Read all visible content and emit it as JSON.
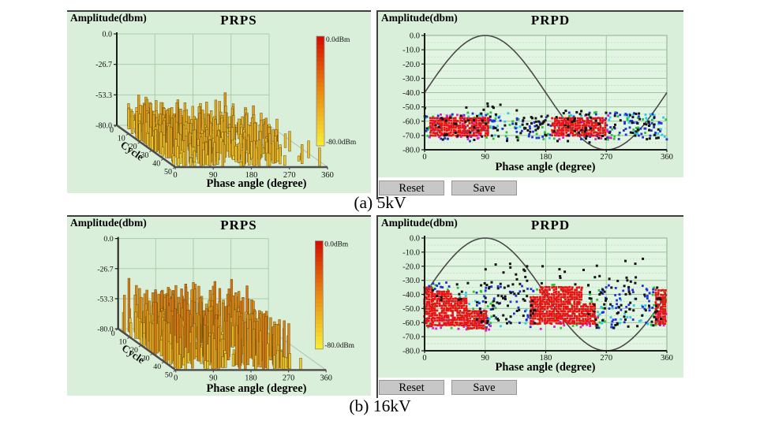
{
  "captions": {
    "a": "(a) 5kV",
    "b": "(b) 16kV"
  },
  "buttons": {
    "reset": "Reset",
    "save": "Save"
  },
  "colors": {
    "panel_bg": "#d9efd9",
    "plot_bg": "#e2f4e2",
    "grid_major": "#9cc49c",
    "grid_minor": "#b4d7b4",
    "backwall_grid": "#a9cdab",
    "axis": "#1c1c1c",
    "frame": "#4c4c4c",
    "sine": "#4a4a4a",
    "button_bg": "#c7c7c7",
    "panel_border": "#3f3f3f"
  },
  "chart_data": [
    {
      "id": "prps_5kv",
      "type": "bar",
      "variant": "bar3d-prps",
      "title": "PRPS",
      "ylabel": "Amplitude(dbm)",
      "xlabel": "Phase angle (degree)",
      "cycle_label": "Cycle",
      "yticks": [
        "0.0",
        "-26.7",
        "-53.3",
        "-80.0"
      ],
      "ylim": [
        0,
        -80
      ],
      "xticks": [
        "0",
        "90",
        "180",
        "270",
        "360"
      ],
      "xlim": [
        0,
        360
      ],
      "cycle_ticks": [
        "0",
        "10",
        "20",
        "30",
        "40",
        "50"
      ],
      "cycle_range": [
        0,
        50
      ],
      "colorbar": {
        "top_label": "0.0dBm",
        "bottom_label": "-80.0dBm",
        "top_color": "#d41000",
        "bottom_color": "#f6ea32"
      },
      "palette": {
        "low": "#f2df3a",
        "mid": "#d98f1d",
        "high": "#c8320a"
      },
      "seed": 101,
      "clusters": [
        {
          "phase": [
            0,
            133
          ],
          "count": 260,
          "amp": [
            -52,
            -78
          ],
          "peak_share": 0.05,
          "peak_amp": [
            -46,
            -50
          ]
        },
        {
          "phase": [
            150,
            272
          ],
          "count": 180,
          "amp": [
            -54,
            -78
          ],
          "peak_share": 0.04,
          "peak_amp": [
            -47,
            -52
          ]
        },
        {
          "phase": [
            272,
            337
          ],
          "count": 26,
          "amp": [
            -60,
            -79
          ]
        },
        {
          "phase": [
            343,
            348
          ],
          "count": 2,
          "amp": [
            -63,
            -67
          ]
        }
      ]
    },
    {
      "id": "prpd_5kv",
      "type": "scatter",
      "variant": "prpd",
      "title": "PRPD",
      "ylabel": "Amplitude(dbm)",
      "xlabel": "Phase angle (degree)",
      "yticks": [
        "0.0",
        "-10.0",
        "-20.0",
        "-30.0",
        "-40.0",
        "-50.0",
        "-60.0",
        "-70.0",
        "-80.0"
      ],
      "ylim": [
        0,
        -80
      ],
      "xticks": [
        "0",
        "90",
        "180",
        "270",
        "360"
      ],
      "xlim": [
        0,
        360
      ],
      "sine_overlay": {
        "center_dbm": -40,
        "amplitude_dbm": 40
      },
      "point_colors": {
        "red": "#e81212",
        "magenta": "#de1ec8",
        "green": "#28c33e",
        "yellow": "#eeeea6",
        "cyan": "#27c9e5",
        "blue": "#2230d8",
        "black": "#141414"
      },
      "seed": 202,
      "regions": [
        {
          "kind": "random",
          "color": "yellow",
          "phase": [
            28,
            100
          ],
          "amp": [
            -55,
            -70
          ],
          "count": 20
        },
        {
          "kind": "random",
          "color": "yellow",
          "phase": [
            192,
            262
          ],
          "amp": [
            -55,
            -70
          ],
          "count": 14
        },
        {
          "kind": "random",
          "color": "green",
          "phase": [
            0,
            140
          ],
          "amp": [
            -53,
            -73
          ],
          "count": 40
        },
        {
          "kind": "random",
          "color": "green",
          "phase": [
            162,
            288
          ],
          "amp": [
            -53,
            -73
          ],
          "count": 30
        },
        {
          "kind": "random",
          "color": "green",
          "phase": [
            288,
            360
          ],
          "amp": [
            -55,
            -70
          ],
          "count": 12
        },
        {
          "kind": "random",
          "color": "cyan",
          "phase": [
            0,
            145
          ],
          "amp": [
            -54,
            -73
          ],
          "count": 32
        },
        {
          "kind": "random",
          "color": "cyan",
          "phase": [
            183,
            292
          ],
          "amp": [
            -54,
            -72
          ],
          "count": 22
        },
        {
          "kind": "random",
          "color": "cyan",
          "phase": [
            292,
            360
          ],
          "amp": [
            -55,
            -71
          ],
          "count": 22
        },
        {
          "kind": "random",
          "color": "blue",
          "phase": [
            0,
            100
          ],
          "amp": [
            -54,
            -74
          ],
          "count": 26
        },
        {
          "kind": "random",
          "color": "blue",
          "phase": [
            100,
            190
          ],
          "amp": [
            -55,
            -73
          ],
          "count": 34
        },
        {
          "kind": "random",
          "color": "blue",
          "phase": [
            190,
            275
          ],
          "amp": [
            -54,
            -73
          ],
          "count": 20
        },
        {
          "kind": "random",
          "color": "blue",
          "phase": [
            275,
            360
          ],
          "amp": [
            -54,
            -73
          ],
          "count": 46
        },
        {
          "kind": "random",
          "color": "magenta",
          "phase": [
            4,
            102
          ],
          "amp": [
            -55,
            -73
          ],
          "count": 42
        },
        {
          "kind": "random",
          "color": "magenta",
          "phase": [
            186,
            278
          ],
          "amp": [
            -55,
            -73
          ],
          "count": 34
        },
        {
          "kind": "grid",
          "color": "red",
          "segments": [
            {
              "phase": [
                9,
                97
              ],
              "amp": [
                -58,
                -71
              ]
            }
          ]
        },
        {
          "kind": "grid",
          "color": "red",
          "segments": [
            {
              "phase": [
                190,
                271
              ],
              "amp": [
                -58,
                -71
              ]
            }
          ]
        },
        {
          "kind": "random",
          "color": "black",
          "phase": [
            0,
            140
          ],
          "amp": [
            -50,
            -75
          ],
          "count": 46
        },
        {
          "kind": "random",
          "color": "black",
          "phase": [
            140,
            190
          ],
          "amp": [
            -56,
            -73
          ],
          "count": 30
        },
        {
          "kind": "random",
          "color": "black",
          "phase": [
            190,
            302
          ],
          "amp": [
            -52,
            -75
          ],
          "count": 42
        },
        {
          "kind": "random",
          "color": "black",
          "phase": [
            302,
            360
          ],
          "amp": [
            -54,
            -73
          ],
          "count": 26
        },
        {
          "kind": "random",
          "color": "black",
          "phase": [
            93,
            117
          ],
          "amp": [
            -47,
            -53
          ],
          "count": 5
        }
      ]
    },
    {
      "id": "prps_16kv",
      "type": "bar",
      "variant": "bar3d-prps",
      "title": "PRPS",
      "ylabel": "Amplitude(dbm)",
      "xlabel": "Phase angle (degree)",
      "cycle_label": "Cycle",
      "yticks": [
        "0.0",
        "-26.7",
        "-53.3",
        "-80.0"
      ],
      "ylim": [
        0,
        -80
      ],
      "xticks": [
        "0",
        "90",
        "180",
        "270",
        "360"
      ],
      "xlim": [
        0,
        360
      ],
      "cycle_ticks": [
        "0",
        "10",
        "20",
        "30",
        "40",
        "50"
      ],
      "cycle_range": [
        0,
        50
      ],
      "colorbar": {
        "top_label": "0.0dBm",
        "bottom_label": "-80.0dBm",
        "top_color": "#d41000",
        "bottom_color": "#f6ea32"
      },
      "palette": {
        "low": "#f2df3a",
        "mid": "#d98f1d",
        "high": "#c8320a"
      },
      "seed": 303,
      "clusters": [
        {
          "phase": [
            0,
            128
          ],
          "count": 250,
          "amp": [
            -38,
            -74
          ],
          "peak_share": 0.08,
          "peak_amp": [
            -28,
            -36
          ]
        },
        {
          "phase": [
            150,
            278
          ],
          "count": 210,
          "amp": [
            -38,
            -74
          ],
          "peak_share": 0.06,
          "peak_amp": [
            -30,
            -36
          ]
        },
        {
          "phase": [
            280,
            302
          ],
          "count": 14,
          "amp": [
            -48,
            -72
          ]
        }
      ]
    },
    {
      "id": "prpd_16kv",
      "type": "scatter",
      "variant": "prpd",
      "title": "PRPD",
      "ylabel": "Amplitude(dbm)",
      "xlabel": "Phase angle (degree)",
      "yticks": [
        "0.0",
        "-10.0",
        "-20.0",
        "-30.0",
        "-40.0",
        "-50.0",
        "-60.0",
        "-70.0",
        "-80.0"
      ],
      "ylim": [
        0,
        -80
      ],
      "xticks": [
        "0",
        "90",
        "180",
        "270",
        "360"
      ],
      "xlim": [
        0,
        360
      ],
      "sine_overlay": {
        "center_dbm": -40,
        "amplitude_dbm": 40
      },
      "point_colors": {
        "red": "#e81212",
        "magenta": "#de1ec8",
        "green": "#28c33e",
        "yellow": "#eeeea6",
        "cyan": "#27c9e5",
        "blue": "#2230d8",
        "black": "#141414"
      },
      "seed": 404,
      "regions": [
        {
          "kind": "random",
          "color": "yellow",
          "phase": [
            52,
            100
          ],
          "amp": [
            -47,
            -63
          ],
          "count": 16
        },
        {
          "kind": "random",
          "color": "yellow",
          "phase": [
            222,
            260
          ],
          "amp": [
            -47,
            -62
          ],
          "count": 10
        },
        {
          "kind": "random",
          "color": "green",
          "phase": [
            0,
            108
          ],
          "amp": [
            -33,
            -65
          ],
          "count": 46
        },
        {
          "kind": "random",
          "color": "green",
          "phase": [
            150,
            268
          ],
          "amp": [
            -33,
            -64
          ],
          "count": 40
        },
        {
          "kind": "random",
          "color": "green",
          "phase": [
            336,
            360
          ],
          "amp": [
            -34,
            -62
          ],
          "count": 18
        },
        {
          "kind": "random",
          "color": "cyan",
          "phase": [
            28,
            118
          ],
          "amp": [
            -38,
            -64
          ],
          "count": 26
        },
        {
          "kind": "random",
          "color": "cyan",
          "phase": [
            248,
            346
          ],
          "amp": [
            -40,
            -64
          ],
          "count": 22
        },
        {
          "kind": "random",
          "color": "cyan",
          "phase": [
            150,
            178
          ],
          "amp": [
            -43,
            -62
          ],
          "count": 10
        },
        {
          "kind": "random",
          "color": "blue",
          "phase": [
            72,
            162
          ],
          "amp": [
            -34,
            -64
          ],
          "count": 55
        },
        {
          "kind": "random",
          "color": "blue",
          "phase": [
            246,
            350
          ],
          "amp": [
            -33,
            -64
          ],
          "count": 55
        },
        {
          "kind": "random",
          "color": "blue",
          "phase": [
            0,
            44
          ],
          "amp": [
            -31,
            -38
          ],
          "count": 12
        },
        {
          "kind": "random",
          "color": "magenta",
          "phase": [
            0,
            98
          ],
          "amp": [
            -56,
            -66
          ],
          "count": 30
        },
        {
          "kind": "random",
          "color": "magenta",
          "phase": [
            158,
            260
          ],
          "amp": [
            -54,
            -65
          ],
          "count": 24
        },
        {
          "kind": "random",
          "color": "magenta",
          "phase": [
            344,
            360
          ],
          "amp": [
            -50,
            -62
          ],
          "count": 8
        },
        {
          "kind": "grid",
          "color": "red",
          "segments": [
            {
              "phase": [
                0,
                12
              ],
              "amp": [
                -35,
                -63
              ]
            },
            {
              "phase": [
                12,
                42
              ],
              "amp": [
                -38,
                -63
              ]
            },
            {
              "phase": [
                42,
                64
              ],
              "amp": [
                -43,
                -63
              ]
            },
            {
              "phase": [
                64,
                92
              ],
              "amp": [
                -52,
                -64
              ]
            }
          ]
        },
        {
          "kind": "grid",
          "color": "red",
          "segments": [
            {
              "phase": [
                158,
                172
              ],
              "amp": [
                -42,
                -62
              ]
            },
            {
              "phase": [
                172,
                236
              ],
              "amp": [
                -35,
                -62
              ]
            },
            {
              "phase": [
                236,
                256
              ],
              "amp": [
                -47,
                -62
              ]
            }
          ]
        },
        {
          "kind": "grid",
          "color": "red",
          "segments": [
            {
              "phase": [
                344,
                360
              ],
              "amp": [
                -37,
                -61
              ]
            }
          ]
        },
        {
          "kind": "random",
          "color": "black",
          "phase": [
            76,
            166
          ],
          "amp": [
            -31,
            -63
          ],
          "count": 60
        },
        {
          "kind": "random",
          "color": "black",
          "phase": [
            240,
            352
          ],
          "amp": [
            -29,
            -64
          ],
          "count": 62
        },
        {
          "kind": "random",
          "color": "black",
          "phase": [
            80,
            160
          ],
          "amp": [
            -14,
            -33
          ],
          "count": 12
        },
        {
          "kind": "random",
          "color": "black",
          "phase": [
            252,
            336
          ],
          "amp": [
            -13,
            -33
          ],
          "count": 10
        },
        {
          "kind": "random",
          "color": "black",
          "phase": [
            162,
            246
          ],
          "amp": [
            -20,
            -34
          ],
          "count": 9
        },
        {
          "kind": "random",
          "color": "black",
          "phase": [
            0,
            76
          ],
          "amp": [
            -30,
            -44
          ],
          "count": 10
        }
      ]
    }
  ]
}
